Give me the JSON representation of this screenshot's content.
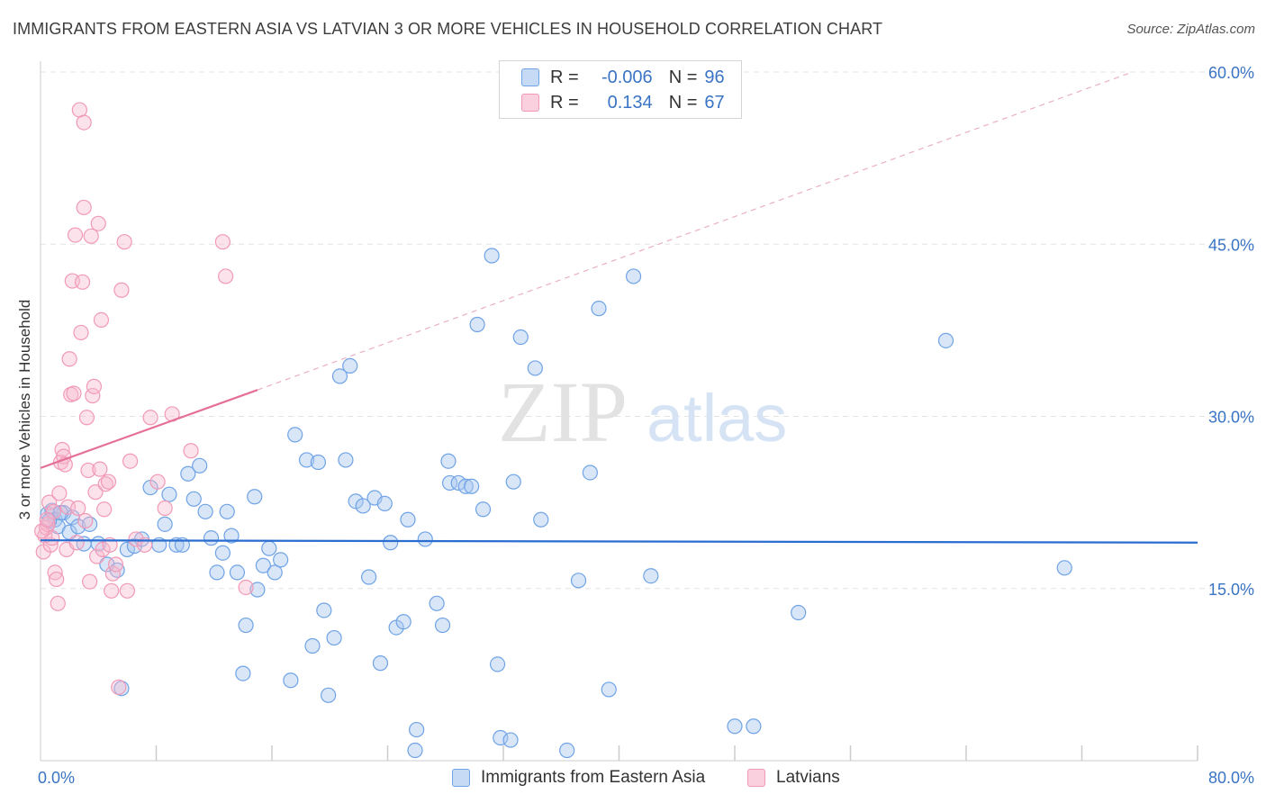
{
  "title": "IMMIGRANTS FROM EASTERN ASIA VS LATVIAN 3 OR MORE VEHICLES IN HOUSEHOLD CORRELATION CHART",
  "source": "Source: ZipAtlas.com",
  "watermark": {
    "zip": "ZIP",
    "atlas": "atlas"
  },
  "legend": {
    "rows": [
      {
        "r_label": "R =",
        "r_value": "-0.006",
        "n_label": "N =",
        "n_value": "96"
      },
      {
        "r_label": "R =",
        "r_value": "0.134",
        "n_label": "N =",
        "n_value": "67"
      }
    ]
  },
  "bottom_legend": {
    "blue": "Immigrants from Eastern Asia",
    "pink": "Latvians"
  },
  "colors": {
    "blue": "#6fa3e6",
    "blue_line": "#2a6dd0",
    "pink": "#f199b6",
    "pink_line": "#e56f95",
    "tick_text": "#3a74c4"
  },
  "chart_data": {
    "type": "scatter",
    "title": "IMMIGRANTS FROM EASTERN ASIA VS LATVIAN 3 OR MORE VEHICLES IN HOUSEHOLD CORRELATION CHART",
    "xlabel": "",
    "ylabel": "3 or more Vehicles in Household",
    "xlim": [
      0,
      80
    ],
    "ylim": [
      0,
      60
    ],
    "x_tick_labels": [
      "0.0%",
      "80.0%"
    ],
    "y_ticks": [
      15,
      30,
      45,
      60
    ],
    "y_tick_labels": [
      "15.0%",
      "30.0%",
      "45.0%",
      "60.0%"
    ],
    "series": [
      {
        "name": "Immigrants from Eastern Asia",
        "color": "#6fa3e6",
        "R": -0.006,
        "N": 96,
        "trend": {
          "x": [
            0,
            80
          ],
          "y": [
            19.2,
            19.0
          ]
        },
        "points": [
          [
            0.5,
            21.5
          ],
          [
            0.8,
            21.8
          ],
          [
            1.0,
            21.0
          ],
          [
            1.2,
            20.4
          ],
          [
            1.6,
            21.6
          ],
          [
            2.0,
            19.9
          ],
          [
            2.2,
            21.2
          ],
          [
            2.6,
            20.4
          ],
          [
            3.0,
            18.9
          ],
          [
            3.4,
            20.6
          ],
          [
            4.0,
            18.9
          ],
          [
            4.6,
            17.1
          ],
          [
            5.3,
            16.6
          ],
          [
            5.6,
            6.3
          ],
          [
            6.0,
            18.4
          ],
          [
            6.5,
            18.7
          ],
          [
            7.0,
            19.3
          ],
          [
            7.6,
            23.8
          ],
          [
            8.2,
            18.8
          ],
          [
            8.6,
            20.6
          ],
          [
            8.9,
            23.2
          ],
          [
            9.4,
            18.8
          ],
          [
            9.8,
            18.8
          ],
          [
            10.2,
            25.0
          ],
          [
            10.6,
            22.8
          ],
          [
            11.0,
            25.7
          ],
          [
            11.4,
            21.7
          ],
          [
            11.8,
            19.4
          ],
          [
            12.2,
            16.4
          ],
          [
            12.6,
            18.1
          ],
          [
            12.9,
            21.7
          ],
          [
            13.2,
            19.6
          ],
          [
            13.6,
            16.4
          ],
          [
            14.0,
            7.6
          ],
          [
            14.2,
            11.8
          ],
          [
            14.8,
            23.0
          ],
          [
            15.0,
            14.9
          ],
          [
            15.4,
            17.0
          ],
          [
            15.8,
            18.5
          ],
          [
            16.2,
            16.4
          ],
          [
            16.6,
            17.5
          ],
          [
            17.3,
            7.0
          ],
          [
            17.6,
            28.4
          ],
          [
            18.4,
            26.2
          ],
          [
            18.8,
            10.0
          ],
          [
            19.2,
            26.0
          ],
          [
            19.6,
            13.1
          ],
          [
            19.9,
            5.7
          ],
          [
            20.3,
            10.7
          ],
          [
            20.7,
            33.5
          ],
          [
            21.1,
            26.2
          ],
          [
            21.4,
            34.4
          ],
          [
            21.8,
            22.6
          ],
          [
            22.3,
            22.2
          ],
          [
            22.7,
            16.0
          ],
          [
            23.1,
            22.9
          ],
          [
            23.5,
            8.5
          ],
          [
            23.8,
            22.4
          ],
          [
            24.2,
            19.0
          ],
          [
            24.6,
            11.6
          ],
          [
            25.1,
            12.1
          ],
          [
            25.4,
            21.0
          ],
          [
            26.0,
            2.7
          ],
          [
            25.9,
            0.9
          ],
          [
            26.6,
            19.3
          ],
          [
            27.4,
            13.7
          ],
          [
            27.8,
            11.8
          ],
          [
            28.2,
            26.1
          ],
          [
            28.3,
            24.2
          ],
          [
            28.9,
            24.2
          ],
          [
            29.4,
            23.9
          ],
          [
            29.8,
            23.9
          ],
          [
            30.2,
            38.0
          ],
          [
            30.6,
            21.9
          ],
          [
            31.2,
            44.0
          ],
          [
            31.6,
            8.4
          ],
          [
            31.8,
            2.0
          ],
          [
            32.5,
            1.8
          ],
          [
            32.7,
            24.3
          ],
          [
            33.2,
            36.9
          ],
          [
            34.2,
            34.2
          ],
          [
            34.6,
            21.0
          ],
          [
            36.4,
            0.9
          ],
          [
            37.2,
            15.7
          ],
          [
            38.0,
            25.1
          ],
          [
            38.6,
            39.4
          ],
          [
            39.3,
            6.2
          ],
          [
            41.0,
            42.2
          ],
          [
            42.2,
            16.1
          ],
          [
            48.0,
            3.0
          ],
          [
            49.3,
            3.0
          ],
          [
            52.4,
            12.9
          ],
          [
            62.6,
            36.6
          ],
          [
            70.8,
            16.8
          ],
          [
            0.6,
            20.9
          ],
          [
            1.4,
            21.6
          ]
        ]
      },
      {
        "name": "Latvians",
        "color": "#f199b6",
        "R": 0.134,
        "N": 67,
        "trend": {
          "x": [
            0,
            15
          ],
          "y": [
            25.5,
            32.3
          ]
        },
        "trend_extension": {
          "x": [
            15,
            75.5
          ],
          "y": [
            32.3,
            60.0
          ]
        },
        "points": [
          [
            0.2,
            18.2
          ],
          [
            0.3,
            19.6
          ],
          [
            0.4,
            20.3
          ],
          [
            0.5,
            20.6
          ],
          [
            0.6,
            22.5
          ],
          [
            0.7,
            18.8
          ],
          [
            0.8,
            19.4
          ],
          [
            0.9,
            21.7
          ],
          [
            1.0,
            16.4
          ],
          [
            1.1,
            15.8
          ],
          [
            1.2,
            13.7
          ],
          [
            1.3,
            23.3
          ],
          [
            1.4,
            26.0
          ],
          [
            1.5,
            27.1
          ],
          [
            1.6,
            26.5
          ],
          [
            1.7,
            25.8
          ],
          [
            1.8,
            18.4
          ],
          [
            1.9,
            22.1
          ],
          [
            2.0,
            35.0
          ],
          [
            2.1,
            31.9
          ],
          [
            2.2,
            41.8
          ],
          [
            2.3,
            32.0
          ],
          [
            2.4,
            45.8
          ],
          [
            2.5,
            19.0
          ],
          [
            2.6,
            22.0
          ],
          [
            2.7,
            56.7
          ],
          [
            2.8,
            37.3
          ],
          [
            2.9,
            41.7
          ],
          [
            3.0,
            55.6
          ],
          [
            3.0,
            48.2
          ],
          [
            3.1,
            20.9
          ],
          [
            3.2,
            29.9
          ],
          [
            3.3,
            25.3
          ],
          [
            3.4,
            15.6
          ],
          [
            3.5,
            45.7
          ],
          [
            3.6,
            31.8
          ],
          [
            3.7,
            32.6
          ],
          [
            3.8,
            23.4
          ],
          [
            3.9,
            17.8
          ],
          [
            4.0,
            46.8
          ],
          [
            4.1,
            25.4
          ],
          [
            4.2,
            38.4
          ],
          [
            4.3,
            18.4
          ],
          [
            4.4,
            21.9
          ],
          [
            4.5,
            24.1
          ],
          [
            4.7,
            24.3
          ],
          [
            4.8,
            18.8
          ],
          [
            4.9,
            14.8
          ],
          [
            5.0,
            16.3
          ],
          [
            5.2,
            17.1
          ],
          [
            5.4,
            6.4
          ],
          [
            5.6,
            41.0
          ],
          [
            5.8,
            45.2
          ],
          [
            6.0,
            14.8
          ],
          [
            6.2,
            26.1
          ],
          [
            6.6,
            19.3
          ],
          [
            7.2,
            18.8
          ],
          [
            7.6,
            29.9
          ],
          [
            8.1,
            24.3
          ],
          [
            8.6,
            22.0
          ],
          [
            9.1,
            30.2
          ],
          [
            10.4,
            27.0
          ],
          [
            12.6,
            45.2
          ],
          [
            12.8,
            42.2
          ],
          [
            14.2,
            15.1
          ],
          [
            0.1,
            20.0
          ],
          [
            0.45,
            21.0
          ]
        ]
      }
    ]
  }
}
